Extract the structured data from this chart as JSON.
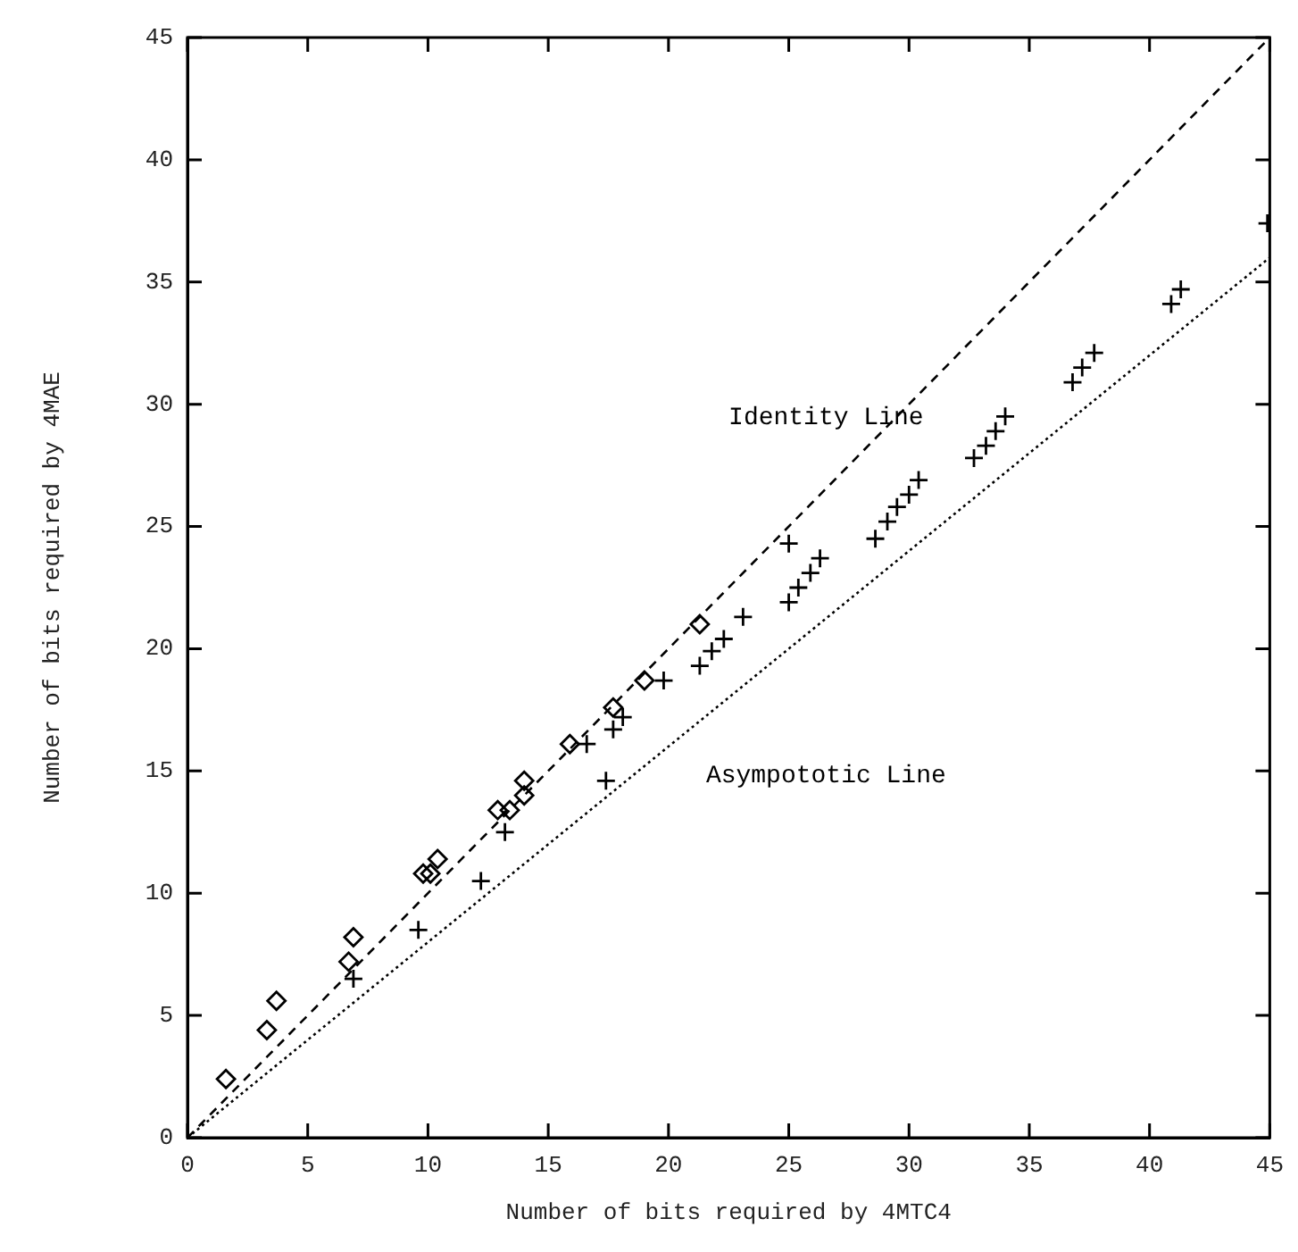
{
  "chart_data": {
    "type": "scatter",
    "xlabel": "Number of bits required by 4MTC4",
    "ylabel": "Number of bits required by 4MAE",
    "xlim": [
      0,
      45
    ],
    "ylim": [
      0,
      45
    ],
    "xticks": [
      0,
      5,
      10,
      15,
      20,
      25,
      30,
      35,
      40,
      45
    ],
    "yticks": [
      0,
      5,
      10,
      15,
      20,
      25,
      30,
      35,
      40,
      45
    ],
    "grid": false,
    "legend": false,
    "series": [
      {
        "type": "line",
        "name": "Identity Line",
        "color": "#000000",
        "line_style": "dashed",
        "marker": "none",
        "x": [
          0,
          45
        ],
        "values": [
          0,
          45
        ]
      },
      {
        "type": "line",
        "name": "Asympototic Line",
        "color": "#000000",
        "line_style": "dotted",
        "marker": "none",
        "x": [
          0,
          45
        ],
        "values": [
          0,
          36
        ]
      },
      {
        "type": "scatter",
        "color": "#000000",
        "marker": "diamond",
        "x": [
          1.6,
          3.3,
          3.7,
          6.7,
          6.9,
          9.8,
          10.1,
          10.4,
          12.9,
          13.4,
          14.0,
          14.0,
          15.9,
          17.7,
          19.0,
          21.3
        ],
        "values": [
          2.4,
          4.4,
          5.6,
          7.2,
          8.2,
          10.8,
          10.8,
          11.4,
          13.4,
          13.4,
          14.0,
          14.6,
          16.1,
          17.6,
          18.7,
          21.0
        ]
      },
      {
        "type": "scatter",
        "color": "#000000",
        "marker": "cross",
        "x": [
          6.9,
          9.6,
          12.2,
          13.2,
          16.6,
          17.4,
          17.7,
          18.1,
          19.8,
          21.3,
          21.8,
          22.3,
          23.1,
          25.0,
          25.4,
          25.9,
          26.3,
          25.0,
          28.6,
          29.1,
          29.5,
          30.0,
          30.4,
          32.7,
          33.2,
          33.6,
          34.0,
          36.8,
          37.2,
          37.7,
          40.9,
          41.3,
          44.9
        ],
        "values": [
          6.5,
          8.5,
          10.5,
          12.5,
          16.1,
          14.6,
          16.7,
          17.2,
          18.7,
          19.3,
          19.9,
          20.4,
          21.3,
          21.9,
          22.5,
          23.1,
          23.7,
          24.3,
          24.5,
          25.2,
          25.8,
          26.3,
          26.9,
          27.8,
          28.3,
          28.9,
          29.5,
          30.9,
          31.5,
          32.1,
          34.1,
          34.7,
          37.4
        ]
      }
    ]
  }
}
